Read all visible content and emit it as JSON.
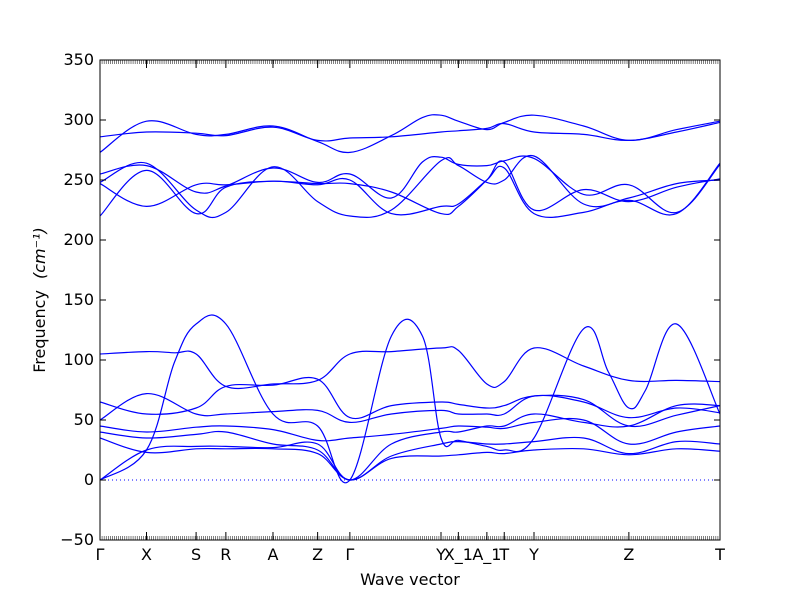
{
  "chart_data": {
    "type": "line",
    "title": "",
    "xlabel": "Wave vector",
    "ylabel": "Frequency",
    "ylabel_unit": "(cm⁻¹)",
    "ylim": [
      -50,
      350
    ],
    "yticks": [
      -50,
      0,
      50,
      100,
      150,
      200,
      250,
      300,
      350
    ],
    "xlim": [
      0,
      100
    ],
    "kpoints": [
      {
        "label": "Γ",
        "x": 0
      },
      {
        "label": "X",
        "x": 7.5
      },
      {
        "label": "S",
        "x": 15.5
      },
      {
        "label": "R",
        "x": 20.3
      },
      {
        "label": "A",
        "x": 27.9
      },
      {
        "label": "Z",
        "x": 35.1
      },
      {
        "label": "Γ",
        "x": 40.3
      },
      {
        "label": "Y",
        "x": 55.0
      },
      {
        "label": "X_1",
        "x": 57.8
      },
      {
        "label": "A_1",
        "x": 62.4
      },
      {
        "label": "T",
        "x": 65.2
      },
      {
        "label": "Y",
        "x": 70.0
      },
      {
        "label": "Z",
        "x": 85.3
      },
      {
        "label": "T",
        "x": 100
      }
    ],
    "line_color": "#0000ff",
    "zero_line": {
      "y": 0,
      "style": "dotted"
    },
    "series": [
      {
        "x": [
          0,
          7.5,
          15.5,
          20.3,
          27.9,
          35.1,
          40.3,
          47,
          55,
          57.8,
          62.4,
          65.2,
          70,
          78,
          85.3,
          93,
          100
        ],
        "y": [
          286,
          290,
          289,
          287,
          294,
          283,
          285,
          286,
          290,
          291,
          293,
          297,
          290,
          288,
          283,
          290,
          298
        ]
      },
      {
        "x": [
          0,
          7.5,
          15.5,
          20.3,
          27.9,
          35.1,
          40.3,
          47,
          52,
          55,
          57.8,
          62.4,
          65.2,
          70,
          78,
          85.3,
          93,
          100
        ],
        "y": [
          273,
          299,
          288,
          288,
          295,
          282,
          273,
          287,
          302,
          304,
          299,
          292,
          298,
          304,
          295,
          283,
          292,
          299
        ]
      },
      {
        "x": [
          0,
          7.5,
          15.5,
          20.3,
          27.9,
          35.1,
          40.3,
          47,
          52,
          55,
          57.8,
          62.4,
          65.2,
          70,
          78,
          85.3,
          93,
          100
        ],
        "y": [
          255,
          262,
          240,
          245,
          260,
          248,
          255,
          235,
          265,
          269,
          263,
          262,
          266,
          268,
          238,
          246,
          223,
          263
        ]
      },
      {
        "x": [
          0,
          7.5,
          15.5,
          20.3,
          27.9,
          35.1,
          40.3,
          47,
          55,
          57.8,
          62.4,
          65.2,
          70,
          78,
          85.3,
          93,
          100
        ],
        "y": [
          248,
          264,
          225,
          223,
          261,
          232,
          220,
          225,
          266,
          262,
          248,
          250,
          270,
          230,
          235,
          247,
          250
        ]
      },
      {
        "x": [
          0,
          7.5,
          15.5,
          20.3,
          27.9,
          35.1,
          40.3,
          47,
          55,
          57.8,
          62.4,
          65.2,
          70,
          78,
          85.3,
          93,
          100
        ],
        "y": [
          220,
          258,
          222,
          244,
          249,
          246,
          250,
          222,
          228,
          230,
          250,
          260,
          222,
          223,
          233,
          222,
          264
        ]
      },
      {
        "x": [
          0,
          7.5,
          15.5,
          20.3,
          27.9,
          35.1,
          40.3,
          47,
          55,
          57.8,
          62.4,
          65.2,
          70,
          78,
          85.3,
          93,
          100
        ],
        "y": [
          247,
          228,
          246,
          246,
          249,
          247,
          247,
          240,
          222,
          228,
          250,
          265,
          225,
          242,
          232,
          244,
          251
        ]
      },
      {
        "x": [
          0,
          7.5,
          12,
          15.5,
          20.3,
          27.9,
          35.1,
          40.3,
          47,
          55,
          57.8,
          62.4,
          65.2,
          70,
          78,
          85.3,
          93,
          100
        ],
        "y": [
          105,
          107,
          106,
          105,
          78,
          80,
          83,
          105,
          107,
          110,
          108,
          80,
          82,
          110,
          95,
          83,
          83,
          82
        ]
      },
      {
        "x": [
          0,
          7.5,
          12,
          15.5,
          20.3,
          27.9,
          35.1,
          40.3,
          47,
          52,
          55,
          57.8,
          62.4,
          65.2,
          70,
          78,
          82,
          85.3,
          88,
          93,
          100
        ],
        "y": [
          0,
          25,
          98,
          130,
          130,
          55,
          45,
          0,
          120,
          120,
          35,
          33,
          28,
          25,
          35,
          126,
          90,
          60,
          75,
          130,
          55
        ]
      },
      {
        "x": [
          0,
          7.5,
          15.5,
          20.3,
          27.9,
          35.1,
          40.3,
          47,
          55,
          57.8,
          62.4,
          65.2,
          70,
          78,
          85.3,
          93,
          100
        ],
        "y": [
          65,
          55,
          60,
          78,
          79,
          84,
          52,
          62,
          65,
          63,
          60,
          62,
          70,
          67,
          45,
          54,
          62
        ]
      },
      {
        "x": [
          0,
          7.5,
          15.5,
          20.3,
          27.9,
          35.1,
          40.3,
          47,
          55,
          57.8,
          62.4,
          65.2,
          70,
          78,
          85.3,
          93,
          100
        ],
        "y": [
          50,
          72,
          55,
          55,
          57,
          58,
          48,
          55,
          58,
          55,
          55,
          55,
          70,
          65,
          52,
          60,
          56
        ]
      },
      {
        "x": [
          0,
          7.5,
          15.5,
          20.3,
          27.9,
          35.1,
          40.3,
          47,
          55,
          57.8,
          62.4,
          65.2,
          70,
          78,
          85.3,
          93,
          100
        ],
        "y": [
          45,
          40,
          44,
          45,
          42,
          33,
          35,
          38,
          43,
          45,
          44,
          43,
          48,
          50,
          30,
          40,
          45
        ]
      },
      {
        "x": [
          0,
          7.5,
          15.5,
          20.3,
          27.9,
          35.1,
          40.3,
          47,
          55,
          57.8,
          62.4,
          65.2,
          70,
          78,
          85.3,
          93,
          100
        ],
        "y": [
          40,
          35,
          38,
          40,
          30,
          25,
          0,
          20,
          30,
          32,
          30,
          30,
          32,
          35,
          22,
          32,
          30
        ]
      },
      {
        "x": [
          0,
          7.5,
          15.5,
          20.3,
          27.9,
          35.1,
          40.3,
          47,
          55,
          57.8,
          62.4,
          65.2,
          70,
          78,
          85.3,
          93,
          100
        ],
        "y": [
          35,
          23,
          26,
          26,
          26,
          22,
          0,
          18,
          20,
          21,
          23,
          22,
          25,
          26,
          21,
          26,
          24
        ]
      },
      {
        "x": [
          0,
          7.5,
          15.5,
          20.3,
          27.9,
          35.1,
          40.3,
          47,
          55,
          57.8,
          62.4,
          65.2,
          70,
          78,
          85.3,
          93,
          100
        ],
        "y": [
          0,
          25,
          28,
          28,
          27,
          30,
          0,
          30,
          40,
          40,
          45,
          45,
          55,
          48,
          45,
          62,
          62
        ]
      }
    ]
  }
}
